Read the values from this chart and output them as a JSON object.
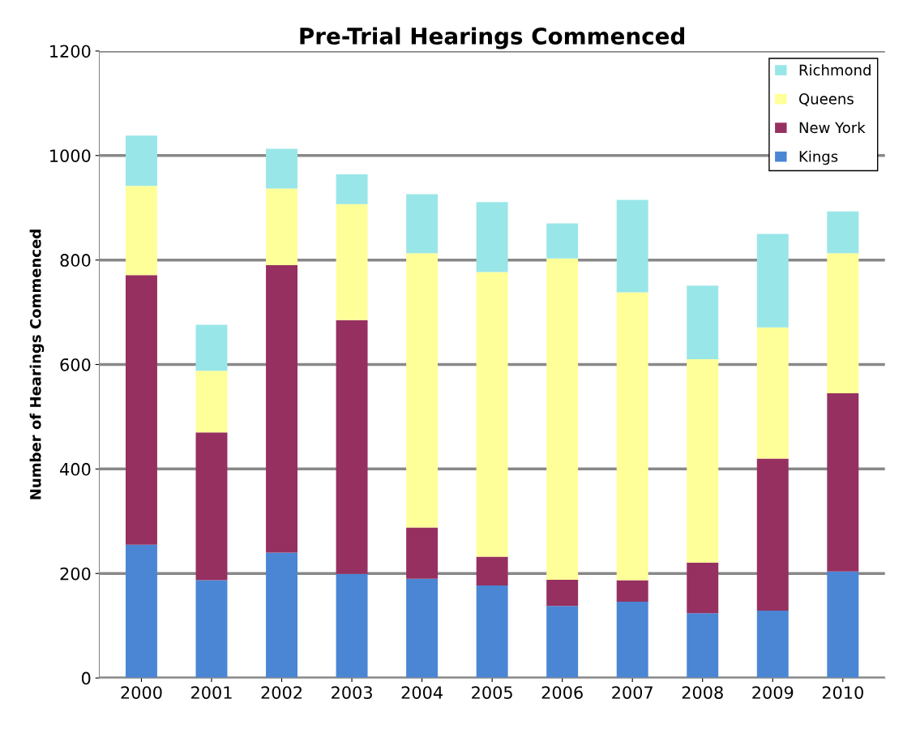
{
  "chart_data": {
    "type": "bar",
    "title": "Pre-Trial Hearings Commenced",
    "ylabel": "Number of Hearings Commenced",
    "categories": [
      "2000",
      "2001",
      "2002",
      "2003",
      "2004",
      "2005",
      "2006",
      "2007",
      "2008",
      "2009",
      "2010"
    ],
    "stacked": true,
    "series": [
      {
        "name": "Kings",
        "color": "#4a86d4",
        "values": [
          255,
          187,
          240,
          199,
          190,
          177,
          138,
          146,
          124,
          129,
          204
        ]
      },
      {
        "name": "New York",
        "color": "#963060",
        "values": [
          516,
          283,
          550,
          486,
          98,
          55,
          50,
          41,
          97,
          291,
          341
        ]
      },
      {
        "name": "Queens",
        "color": "#ffff99",
        "values": [
          171,
          118,
          147,
          222,
          525,
          545,
          615,
          551,
          389,
          251,
          268
        ]
      },
      {
        "name": "Richmond",
        "color": "#99e6e8",
        "values": [
          96,
          88,
          76,
          57,
          113,
          134,
          67,
          177,
          141,
          179,
          80
        ]
      }
    ],
    "ylim": [
      0,
      1200
    ],
    "yticks": [
      0,
      200,
      400,
      600,
      800,
      1000,
      1200
    ],
    "grid": "y",
    "legend": "top right"
  }
}
